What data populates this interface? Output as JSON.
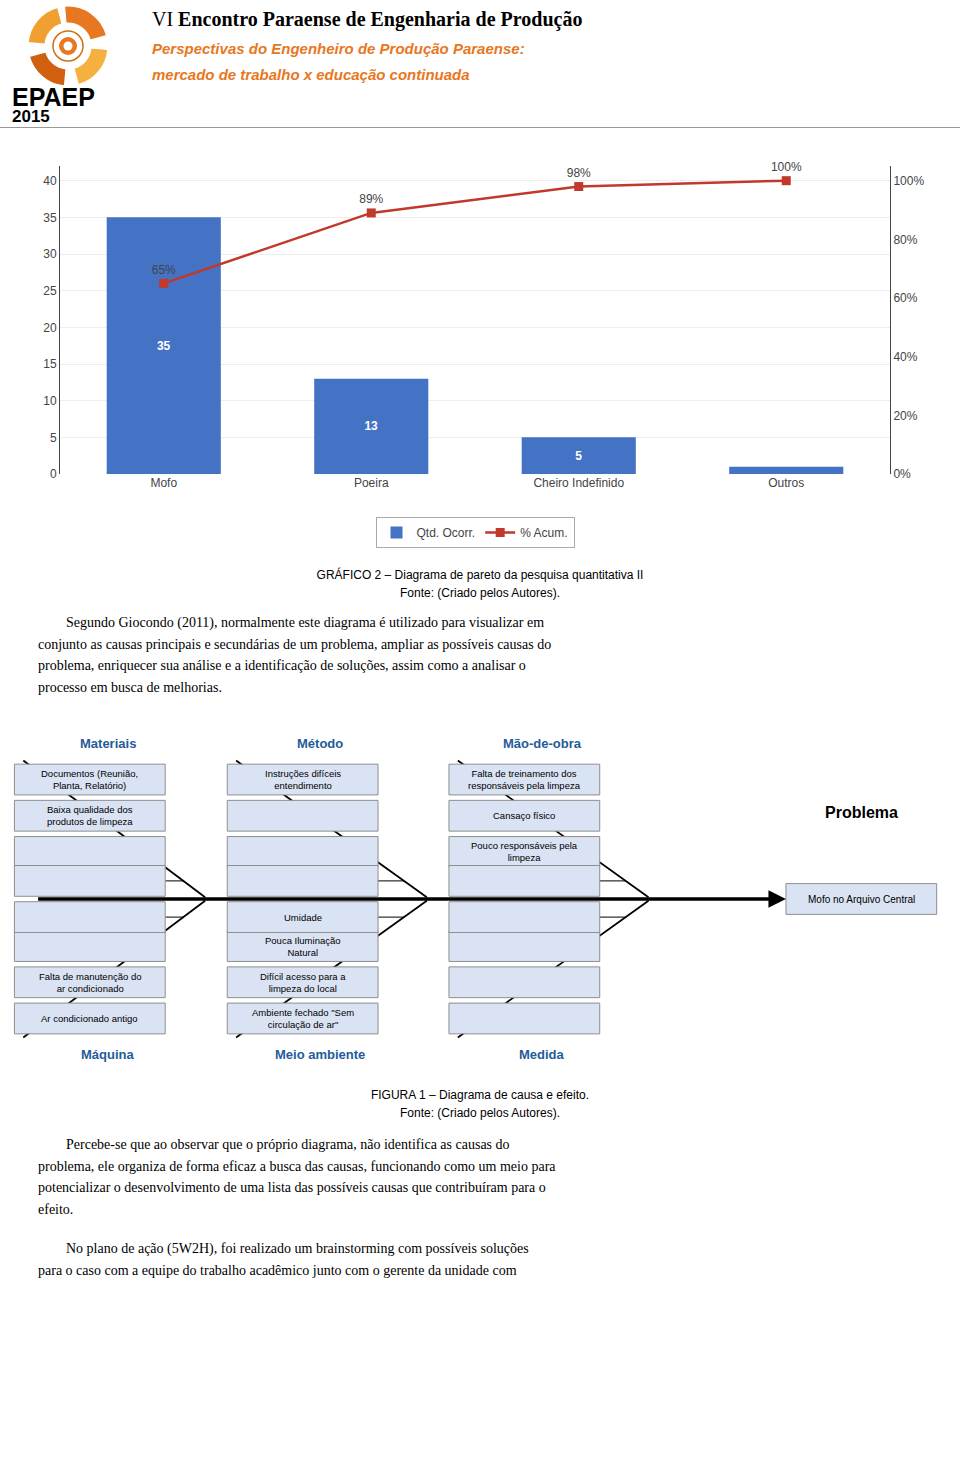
{
  "chart_data": {
    "type": "bar",
    "categories": [
      "Mofo",
      "Poeira",
      "Cheiro Indefinido",
      "Outros"
    ],
    "series": [
      {
        "name": "Qtd. Ocorr.",
        "type": "bar",
        "color": "#4472C4",
        "values": [
          35,
          13,
          5,
          1
        ],
        "value_labels": [
          "35",
          "13",
          "5",
          null
        ]
      },
      {
        "name": "% Acum.",
        "type": "line",
        "axis": "y2",
        "color": "#C0392B",
        "marker": "square",
        "line_style": "solid",
        "values": [
          65,
          89,
          98,
          100
        ],
        "value_labels": [
          "65%",
          "89%",
          "98%",
          "100%"
        ]
      }
    ],
    "ylim": [
      0,
      42
    ],
    "yticks": [
      0,
      5,
      10,
      15,
      20,
      25,
      30,
      35,
      40
    ],
    "y2lim": [
      0,
      105
    ],
    "y2ticks": [
      {
        "value": 0,
        "label": "0%"
      },
      {
        "value": 20,
        "label": "20%"
      },
      {
        "value": 40,
        "label": "40%"
      },
      {
        "value": 60,
        "label": "60%"
      },
      {
        "value": 80,
        "label": "80%"
      },
      {
        "value": 100,
        "label": "100%"
      }
    ],
    "grid": true,
    "legend": "bottom",
    "data_labels": true
  },
  "page": {
    "header": {
      "logo_text": "EPAEP",
      "year": "2015",
      "title_prefix": "VI",
      "title": "Encontro Paraense de Engenharia de Produção",
      "subtitles": [
        "Perspectivas do Engenheiro de Produção Paraense:",
        "mercado de trabalho x educação continuada"
      ],
      "subtitle_color": "#E87722"
    },
    "chart_caption": [
      "GRÁFICO 2 – Diagrama de pareto da pesquisa quantitativa II",
      "Fonte: (Criado pelos Autores)."
    ],
    "paragraph": [
      "        Segundo Giocondo (2011), normalmente este diagrama é utilizado para visualizar em",
      "conjunto as causas principais e secundárias de um problema, ampliar as possíveis causas do",
      "problema, enriquecer sua análise e a identificação de soluções, assim como a analisar o",
      "processo em busca de melhorias."
    ],
    "fishbone": {
      "problem_label": "Problema",
      "effect": "Mofo no Arquivo Central",
      "category_color": "#1F5C99",
      "box_fill": "#DAE3F3",
      "box_edge": "#8E8E8E",
      "top": [
        {
          "category": "Materiais",
          "boxes": [
            "Documentos (Reunião,\nPlanta, Relatório)",
            "Baixa qualidade dos\nprodutos de limpeza",
            null,
            null
          ]
        },
        {
          "category": "Método",
          "boxes": [
            "Instruções difíceis\nentendimento",
            null,
            null,
            null
          ]
        },
        {
          "category": "Mão-de-obra",
          "boxes": [
            "Falta de treinamento dos\nresponsáveis pela limpeza",
            "Cansaço físico",
            "Pouco responsáveis pela\nlimpeza",
            null
          ]
        }
      ],
      "bottom": [
        {
          "category": "Máquina",
          "boxes": [
            "Ar condicionado antigo",
            "Falta de manutenção do\nar condicionado",
            null,
            null
          ]
        },
        {
          "category": "Meio ambiente",
          "boxes": [
            "Ambiente fechado \"Sem\ncirculação de ar\"",
            "Difícil acesso para a\nlimpeza do local",
            "Pouca Iluminação\nNatural",
            "Umidade"
          ]
        },
        {
          "category": "Medida",
          "boxes": [
            null,
            null,
            null,
            null
          ]
        }
      ]
    },
    "figure_caption": [
      "FIGURA 1 – Diagrama de causa e efeito.",
      "Fonte: (Criado pelos Autores)."
    ],
    "bottom_paragraphs": [
      [
        "        Percebe-se que ao observar que o próprio diagrama, não identifica as causas do",
        "problema, ele organiza de forma eficaz a busca das causas, funcionando como um meio para",
        "potencializar o desenvolvimento de uma lista das possíveis causas que contribuíram para o",
        "efeito."
      ],
      [
        "        No plano de ação (5W2H), foi realizado um brainstorming com possíveis soluções",
        "para o caso com a equipe do trabalho acadêmico junto com o gerente da unidade com"
      ]
    ]
  }
}
